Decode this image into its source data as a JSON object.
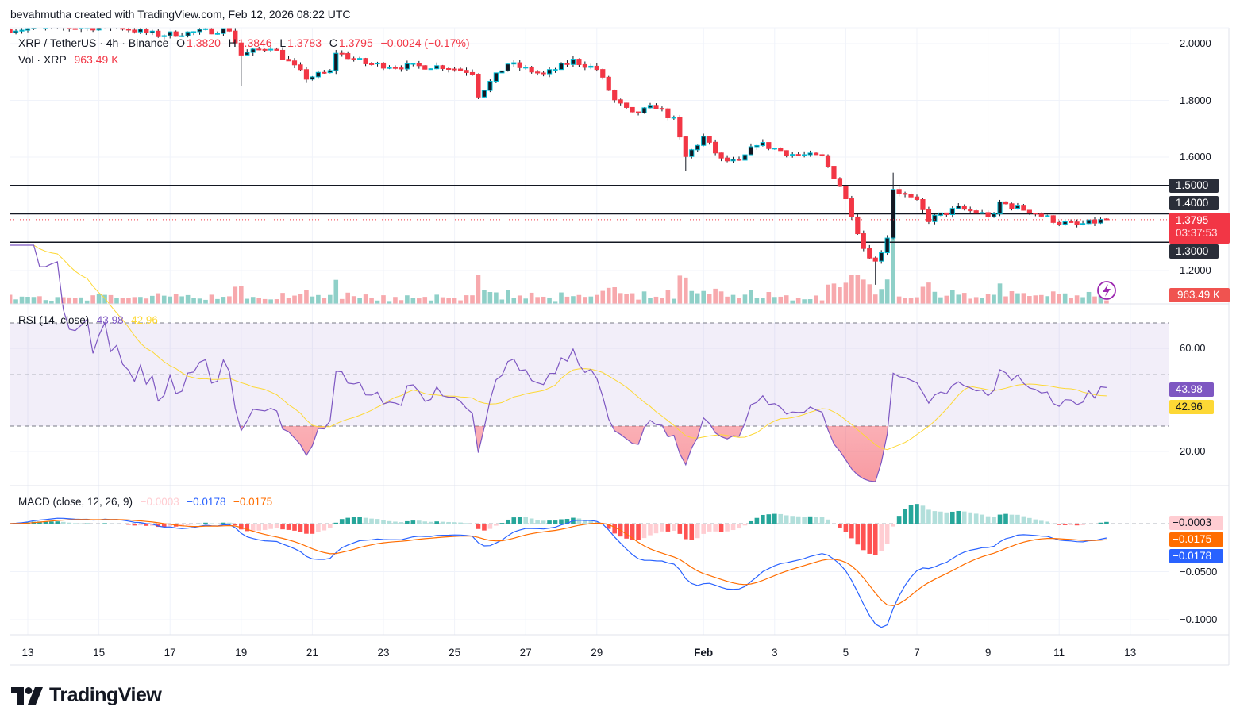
{
  "caption": "bevahmutha created with TradingView.com, Feb 12, 2026 08:22 UTC",
  "header": {
    "symbol": "XRP / TetherUS · 4h · Binance",
    "open_label": "O",
    "open": "1.3820",
    "high_label": "H",
    "high": "1.3846",
    "low_label": "L",
    "low": "1.3783",
    "close_label": "C",
    "close": "1.3795",
    "change": "−0.0024 (−0.17%)",
    "volume_label": "Vol · XRP",
    "volume": "963.49 K"
  },
  "price_axis": {
    "ticks": [
      "2.0000",
      "1.8000",
      "1.6000",
      "1.2000"
    ],
    "levels": [
      "1.5000",
      "1.4000",
      "1.3000"
    ],
    "current_price": "1.3795",
    "countdown": "03:37:53",
    "volume_tag": "963.49 K"
  },
  "rsi": {
    "title": "RSI (14, close)",
    "value": "43.98",
    "ma_value": "42.96",
    "ticks": [
      "60.00",
      "20.00"
    ]
  },
  "macd": {
    "title": "MACD (close, 12, 26, 9)",
    "hist": "−0.0003",
    "macd": "−0.0178",
    "signal": "−0.0175",
    "ticks": [
      "−0.0500",
      "−0.1000"
    ]
  },
  "time_axis": [
    "13",
    "15",
    "17",
    "19",
    "21",
    "23",
    "25",
    "27",
    "29",
    "Feb",
    "3",
    "5",
    "7",
    "9",
    "11",
    "13"
  ],
  "logo_text": "TradingView",
  "colors": {
    "up": "#089981",
    "up_border": "#00bcd4",
    "down": "#f23645",
    "rsi": "#7e57c2",
    "rsi_ma": "#fdd835",
    "macd": "#2962ff",
    "signal": "#ff6d00",
    "hist_up_strong": "#26a69a",
    "hist_up_weak": "#b2dfdb",
    "hist_down_strong": "#ff5252",
    "hist_down_weak": "#ffcdd2"
  },
  "chart_data": {
    "type": "candlestick",
    "interval": "4h",
    "last_candle": {
      "open": 1.382,
      "high": 1.3846,
      "low": 1.3783,
      "close": 1.3795
    },
    "price_levels": [
      1.5,
      1.4,
      1.3
    ],
    "price_keypoints": [
      [
        "2026-01-12T12:00",
        2.05
      ],
      [
        "2026-01-15T12:00",
        2.06
      ],
      [
        "2026-01-16T16:00",
        2.03
      ],
      [
        "2026-01-18T16:00",
        2.05
      ],
      [
        "2026-01-19T00:00",
        1.96
      ],
      [
        "2026-01-19T20:00",
        1.99
      ],
      [
        "2026-01-20T20:00",
        1.88
      ],
      [
        "2026-01-21T12:00",
        1.9
      ],
      [
        "2026-01-21T16:00",
        1.97
      ],
      [
        "2026-01-22T12:00",
        1.93
      ],
      [
        "2026-01-23T08:00",
        1.92
      ],
      [
        "2026-01-24T16:00",
        1.92
      ],
      [
        "2026-01-25T12:00",
        1.9
      ],
      [
        "2026-01-25T16:00",
        1.82
      ],
      [
        "2026-01-26T12:00",
        1.93
      ],
      [
        "2026-01-27T12:00",
        1.89
      ],
      [
        "2026-01-28T08:00",
        1.94
      ],
      [
        "2026-01-29T00:00",
        1.91
      ],
      [
        "2026-01-29T12:00",
        1.8
      ],
      [
        "2026-01-30T00:00",
        1.75
      ],
      [
        "2026-01-30T16:00",
        1.78
      ],
      [
        "2026-01-31T04:00",
        1.73
      ],
      [
        "2026-01-31T12:00",
        1.6
      ],
      [
        "2026-02-01T00:00",
        1.67
      ],
      [
        "2026-02-01T12:00",
        1.59
      ],
      [
        "2026-02-02T00:00",
        1.58
      ],
      [
        "2026-02-02T12:00",
        1.65
      ],
      [
        "2026-02-03T12:00",
        1.61
      ],
      [
        "2026-02-04T08:00",
        1.6
      ],
      [
        "2026-02-04T20:00",
        1.5
      ],
      [
        "2026-02-05T04:00",
        1.4
      ],
      [
        "2026-02-05T12:00",
        1.28
      ],
      [
        "2026-02-05T20:00",
        1.23
      ],
      [
        "2026-02-06T00:00",
        1.27
      ],
      [
        "2026-02-06T04:00",
        1.32
      ],
      [
        "2026-02-06T08:00",
        1.49
      ],
      [
        "2026-02-07T00:00",
        1.44
      ],
      [
        "2026-02-07T08:00",
        1.38
      ],
      [
        "2026-02-08T04:00",
        1.42
      ],
      [
        "2026-02-09T04:00",
        1.39
      ],
      [
        "2026-02-09T08:00",
        1.44
      ],
      [
        "2026-02-10T04:00",
        1.41
      ],
      [
        "2026-02-11T00:00",
        1.37
      ],
      [
        "2026-02-11T12:00",
        1.36
      ],
      [
        "2026-02-12T08:00",
        1.3795
      ]
    ],
    "rsi": {
      "period": 14,
      "ma_period": 14,
      "bands": [
        70,
        50,
        30
      ],
      "last": 43.98,
      "last_ma": 42.96
    },
    "macd": {
      "fast": 12,
      "slow": 26,
      "signal": 9,
      "last_hist": -0.0003,
      "last_macd": -0.0178,
      "last_signal": -0.0175
    }
  }
}
